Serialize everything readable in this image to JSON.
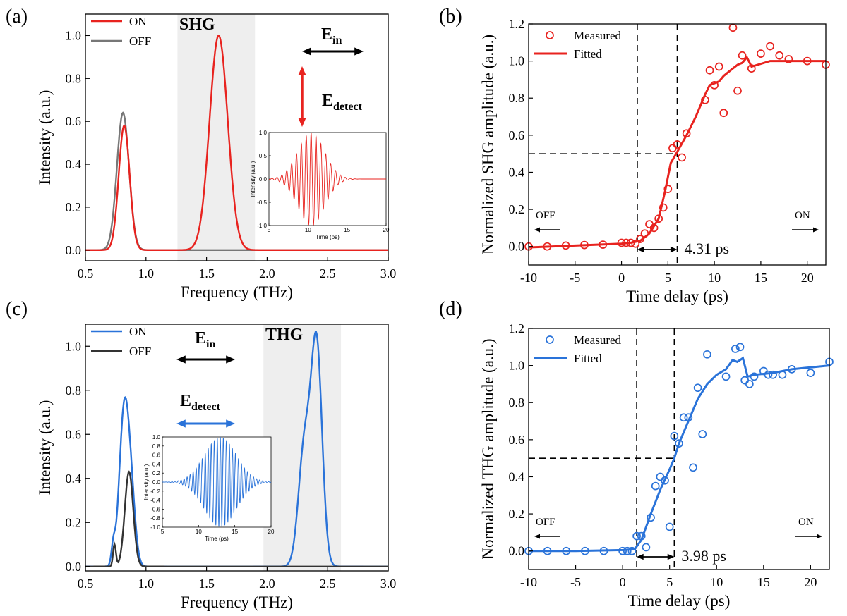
{
  "colors": {
    "red": "#e8231f",
    "gray": "#777777",
    "blue": "#2a73d9",
    "darkgray": "#333333",
    "band": "#eeeeee"
  },
  "chart_data": [
    {
      "panel": "(a)",
      "type": "line",
      "xlabel": "Frequency (THz)",
      "ylabel": "Intensity (a.u.)",
      "xlim": [
        0.5,
        3.0
      ],
      "ylim": [
        -0.05,
        1.1
      ],
      "xticks": [
        "0.5",
        "1.0",
        "1.5",
        "2.0",
        "2.5",
        "3.0"
      ],
      "yticks": [
        "0.0",
        "0.2",
        "0.4",
        "0.6",
        "0.8",
        "1.0"
      ],
      "band": [
        1.26,
        1.9
      ],
      "band_label": "SHG",
      "legend": [
        "ON",
        "OFF"
      ],
      "series": [
        {
          "name": "ON",
          "peaks": [
            {
              "center": 0.82,
              "amp": 0.58,
              "width": 0.045
            },
            {
              "center": 1.6,
              "amp": 1.0,
              "width": 0.075
            }
          ]
        },
        {
          "name": "OFF",
          "peaks": [
            {
              "center": 0.81,
              "amp": 0.64,
              "width": 0.05
            }
          ]
        }
      ],
      "e_in": "E",
      "e_in_sub": "in",
      "e_detect": "E",
      "e_detect_sub": "detect",
      "inset": {
        "xlabel": "Time (ps)",
        "ylabel": "Intensity (a.u.)",
        "xlim": [
          5,
          20
        ],
        "ylim": [
          -1.0,
          1.0
        ],
        "xticks": [
          "5",
          "10",
          "15",
          "20"
        ],
        "yticks": [
          "-1.0",
          "-0.5",
          "0.0",
          "0.5",
          "1.0"
        ],
        "center": 10.4,
        "freq": 1.6,
        "width": 1.7
      }
    },
    {
      "panel": "(b)",
      "type": "scatter",
      "xlabel": "Time delay (ps)",
      "ylabel": "Normalized SHG amplitude (a.u.)",
      "xlim": [
        -10,
        22
      ],
      "ylim": [
        -0.1,
        1.2
      ],
      "xticks": [
        "-10",
        "-5",
        "0",
        "5",
        "10",
        "15",
        "20"
      ],
      "yticks": [
        "0.0",
        "0.2",
        "0.4",
        "0.6",
        "0.8",
        "1.0",
        "1.2"
      ],
      "legend": [
        "Measured",
        "Fitted"
      ],
      "measured": [
        [
          -10,
          0.0
        ],
        [
          -8,
          0.0
        ],
        [
          -6,
          0.005
        ],
        [
          -4,
          0.008
        ],
        [
          -2,
          0.01
        ],
        [
          0,
          0.02
        ],
        [
          0.5,
          0.02
        ],
        [
          1,
          0.02
        ],
        [
          1.5,
          0.015
        ],
        [
          2,
          0.04
        ],
        [
          2.5,
          0.07
        ],
        [
          3,
          0.12
        ],
        [
          3.5,
          0.1
        ],
        [
          4,
          0.15
        ],
        [
          4.5,
          0.21
        ],
        [
          5,
          0.31
        ],
        [
          5.5,
          0.53
        ],
        [
          6,
          0.55
        ],
        [
          6.5,
          0.48
        ],
        [
          7,
          0.61
        ],
        [
          9,
          0.79
        ],
        [
          9.5,
          0.95
        ],
        [
          10,
          0.87
        ],
        [
          10.5,
          0.97
        ],
        [
          11,
          0.72
        ],
        [
          12,
          1.18
        ],
        [
          12.5,
          0.84
        ],
        [
          13,
          1.03
        ],
        [
          14,
          0.96
        ],
        [
          15,
          1.04
        ],
        [
          16,
          1.08
        ],
        [
          17,
          1.03
        ],
        [
          18,
          1.01
        ],
        [
          20,
          1.0
        ],
        [
          22,
          0.98
        ]
      ],
      "fitted": [
        [
          -10,
          -0.005
        ],
        [
          -5,
          0.005
        ],
        [
          0,
          0.015
        ],
        [
          1,
          0.02
        ],
        [
          2,
          0.03
        ],
        [
          3,
          0.07
        ],
        [
          4,
          0.15
        ],
        [
          4.7,
          0.3
        ],
        [
          5.3,
          0.45
        ],
        [
          6,
          0.51
        ],
        [
          7,
          0.6
        ],
        [
          8,
          0.7
        ],
        [
          9,
          0.82
        ],
        [
          9.5,
          0.87
        ],
        [
          10.5,
          0.89
        ],
        [
          11,
          0.92
        ],
        [
          12,
          0.96
        ],
        [
          12.5,
          0.98
        ],
        [
          13,
          0.99
        ],
        [
          13.5,
          1.02
        ],
        [
          14,
          0.97
        ],
        [
          16,
          1.0
        ],
        [
          20,
          1.0
        ],
        [
          22,
          1.0
        ]
      ],
      "vlines": [
        1.7,
        6.0
      ],
      "hline": 0.5,
      "interval_label": "4.31 ps",
      "off_label": "OFF",
      "on_label": "ON"
    },
    {
      "panel": "(c)",
      "type": "line",
      "xlabel": "Frequency (THz)",
      "ylabel": "Intensity (a.u.)",
      "xlim": [
        0.5,
        3.0
      ],
      "ylim": [
        -0.02,
        1.1
      ],
      "xticks": [
        "0.5",
        "1.0",
        "1.5",
        "2.0",
        "2.5",
        "3.0"
      ],
      "yticks": [
        "0.0",
        "0.2",
        "0.4",
        "0.6",
        "0.8",
        "1.0"
      ],
      "band": [
        1.97,
        2.61
      ],
      "band_label": "THG",
      "legend": [
        "ON",
        "OFF"
      ],
      "series": [
        {
          "name": "ON",
          "peaks": [
            {
              "center": 0.73,
              "amp": 0.08,
              "width": 0.015
            },
            {
              "center": 0.82,
              "amp": 0.7,
              "width": 0.04
            },
            {
              "center": 0.88,
              "amp": 0.25,
              "width": 0.035
            },
            {
              "center": 2.31,
              "amp": 0.55,
              "width": 0.05
            },
            {
              "center": 2.41,
              "amp": 0.98,
              "width": 0.045
            }
          ]
        },
        {
          "name": "OFF",
          "peaks": [
            {
              "center": 0.74,
              "amp": 0.1,
              "width": 0.012
            },
            {
              "center": 0.86,
              "amp": 0.43,
              "width": 0.035
            }
          ]
        }
      ],
      "e_in": "E",
      "e_in_sub": "in",
      "e_detect": "E",
      "e_detect_sub": "detect",
      "inset": {
        "xlabel": "Time (ps)",
        "ylabel": "Intensity (a.u.)",
        "xlim": [
          5,
          20
        ],
        "ylim": [
          -1.0,
          1.0
        ],
        "xticks": [
          "5",
          "10",
          "15",
          "20"
        ],
        "yticks": [
          "-1.0",
          "-0.8",
          "-0.6",
          "-0.4",
          "-0.2",
          "0.0",
          "0.2",
          "0.4",
          "0.6",
          "0.8",
          "1.0"
        ],
        "center": 13.0,
        "freq": 2.4,
        "width": 2.2
      }
    },
    {
      "panel": "(d)",
      "type": "scatter",
      "xlabel": "Time delay (ps)",
      "ylabel": "Normalized THG amplitude (a.u.)",
      "xlim": [
        -10,
        22
      ],
      "ylim": [
        -0.1,
        1.2
      ],
      "xticks": [
        "-10",
        "-5",
        "0",
        "5",
        "10",
        "15",
        "20"
      ],
      "yticks": [
        "0.0",
        "0.2",
        "0.4",
        "0.6",
        "0.8",
        "1.0",
        "1.2"
      ],
      "legend": [
        "Measured",
        "Fitted"
      ],
      "measured": [
        [
          -10,
          0.0
        ],
        [
          -8,
          0.0
        ],
        [
          -6,
          0.0
        ],
        [
          -4,
          0.0
        ],
        [
          -2,
          0.0
        ],
        [
          0,
          0.0
        ],
        [
          0.5,
          0.0
        ],
        [
          1,
          0.0
        ],
        [
          1.5,
          0.08
        ],
        [
          2,
          0.08
        ],
        [
          2.5,
          0.02
        ],
        [
          3,
          0.18
        ],
        [
          3.5,
          0.35
        ],
        [
          4,
          0.4
        ],
        [
          4.5,
          0.38
        ],
        [
          5,
          0.13
        ],
        [
          5.5,
          0.62
        ],
        [
          6,
          0.58
        ],
        [
          6.5,
          0.72
        ],
        [
          7,
          0.72
        ],
        [
          7.5,
          0.45
        ],
        [
          8,
          0.88
        ],
        [
          8.5,
          0.63
        ],
        [
          9,
          1.06
        ],
        [
          11,
          0.94
        ],
        [
          12,
          1.09
        ],
        [
          12.5,
          1.1
        ],
        [
          13,
          0.92
        ],
        [
          13.5,
          0.9
        ],
        [
          14,
          0.94
        ],
        [
          15,
          0.97
        ],
        [
          15.5,
          0.95
        ],
        [
          16,
          0.95
        ],
        [
          17,
          0.95
        ],
        [
          18,
          0.98
        ],
        [
          20,
          0.96
        ],
        [
          22,
          1.02
        ]
      ],
      "fitted": [
        [
          -10,
          0.0
        ],
        [
          -5,
          0.0
        ],
        [
          0,
          0.005
        ],
        [
          1.3,
          0.01
        ],
        [
          2,
          0.06
        ],
        [
          3,
          0.2
        ],
        [
          4,
          0.33
        ],
        [
          5,
          0.44
        ],
        [
          5.5,
          0.5
        ],
        [
          6,
          0.58
        ],
        [
          7,
          0.7
        ],
        [
          8,
          0.82
        ],
        [
          9,
          0.9
        ],
        [
          10,
          0.95
        ],
        [
          11,
          0.98
        ],
        [
          11.7,
          1.03
        ],
        [
          12.2,
          1.02
        ],
        [
          12.8,
          1.04
        ],
        [
          13.3,
          0.94
        ],
        [
          14,
          0.95
        ],
        [
          16,
          0.96
        ],
        [
          18,
          0.98
        ],
        [
          20,
          0.99
        ],
        [
          22,
          1.0
        ]
      ],
      "vlines": [
        1.5,
        5.5
      ],
      "hline": 0.5,
      "interval_label": "3.98 ps",
      "off_label": "OFF",
      "on_label": "ON"
    }
  ]
}
